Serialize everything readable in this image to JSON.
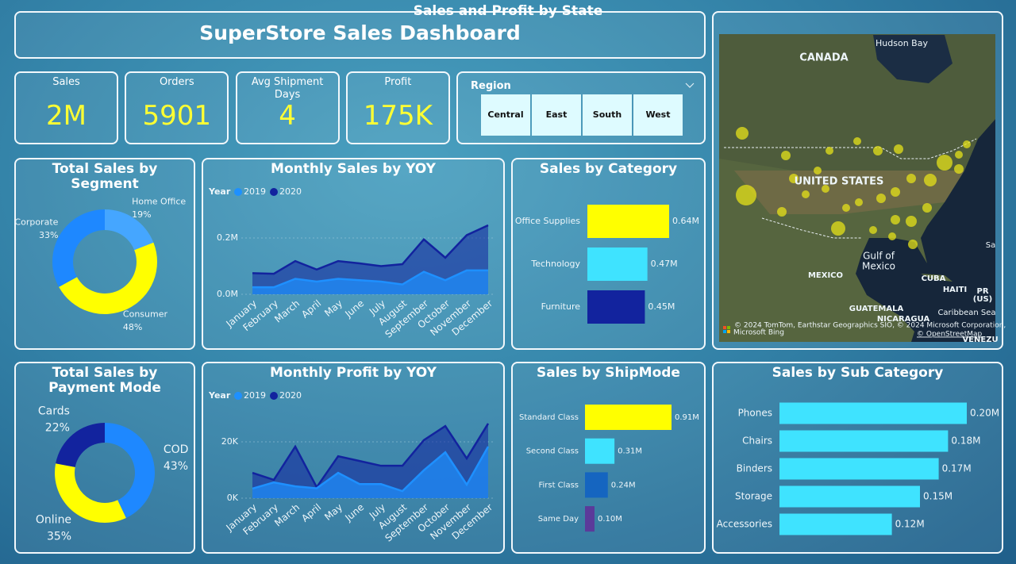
{
  "header": {
    "title": "SuperStore Sales Dashboard"
  },
  "kpis": [
    {
      "label": "Sales",
      "value": "2M"
    },
    {
      "label": "Orders",
      "value": "5901"
    },
    {
      "label": "Avg Shipment Days",
      "value": "4"
    },
    {
      "label": "Profit",
      "value": "175K"
    }
  ],
  "region_slicer": {
    "title": "Region",
    "options": [
      "Central",
      "East",
      "South",
      "West"
    ]
  },
  "map": {
    "title": "Sales and Profit by State",
    "labels": [
      "CANADA",
      "Hudson Bay",
      "UNITED STATES",
      "Gulf of",
      "Mexico",
      "MEXICO",
      "CUBA",
      "HAITI",
      "PR",
      "(US)",
      "GUATEMALA",
      "NICARAGUA",
      "Caribbean Sea",
      "VENEZU",
      "Sa"
    ],
    "attribution": "© 2024 TomTom, Earthstar Geographics SIO, © 2024 Microsoft Corporation,",
    "osm": "© OpenStreetMap",
    "provider": "Microsoft Bing"
  },
  "chart_data": [
    {
      "type": "donut",
      "title": "Total Sales by Segment",
      "categories": [
        "Home Office",
        "Consumer",
        "Corporate"
      ],
      "values": [
        19,
        48,
        33
      ],
      "value_labels": [
        "19%",
        "48%",
        "33%"
      ],
      "colors": [
        "#45a6ff",
        "#ffff00",
        "#1e88ff"
      ]
    },
    {
      "type": "area",
      "title": "Monthly Sales by YOY",
      "legend_title": "Year",
      "categories": [
        "January",
        "February",
        "March",
        "April",
        "May",
        "June",
        "July",
        "August",
        "September",
        "October",
        "November",
        "December"
      ],
      "series": [
        {
          "name": "2019",
          "color": "#1e90ff",
          "values": [
            0.025,
            0.025,
            0.055,
            0.045,
            0.055,
            0.05,
            0.045,
            0.035,
            0.08,
            0.05,
            0.085,
            0.085
          ]
        },
        {
          "name": "2020",
          "color": "#12239e",
          "values": [
            0.075,
            0.073,
            0.118,
            0.088,
            0.118,
            0.11,
            0.1,
            0.107,
            0.195,
            0.13,
            0.21,
            0.245
          ]
        }
      ],
      "ylim": [
        0,
        0.28
      ],
      "yticks": [
        {
          "value": 0,
          "label": "0.0M"
        },
        {
          "value": 0.2,
          "label": "0.2M"
        }
      ],
      "grid": true
    },
    {
      "type": "hbar",
      "title": "Sales by Category",
      "categories": [
        "Office Supplies",
        "Technology",
        "Furniture"
      ],
      "values": [
        0.64,
        0.47,
        0.45
      ],
      "value_labels": [
        "0.64M",
        "0.47M",
        "0.45M"
      ],
      "colors": [
        "#ffff00",
        "#3fe3ff",
        "#12239e"
      ]
    },
    {
      "type": "donut",
      "title": "Total Sales by Payment Mode",
      "categories": [
        "COD",
        "Online",
        "Cards"
      ],
      "values": [
        43,
        35,
        22
      ],
      "value_labels": [
        "43%",
        "35%",
        "22%"
      ],
      "colors": [
        "#1e88ff",
        "#ffff00",
        "#12239e"
      ]
    },
    {
      "type": "area",
      "title": "Monthly Profit by YOY",
      "legend_title": "Year",
      "categories": [
        "January",
        "February",
        "March",
        "April",
        "May",
        "June",
        "July",
        "August",
        "September",
        "October",
        "November",
        "December"
      ],
      "series": [
        {
          "name": "2019",
          "color": "#1e90ff",
          "values": [
            3.4,
            5.6,
            4.2,
            3.5,
            9,
            5,
            5,
            2.5,
            9.9,
            16.3,
            4.8,
            18.3
          ]
        },
        {
          "name": "2020",
          "color": "#12239e",
          "values": [
            9,
            6.5,
            18.3,
            3.9,
            14.9,
            13.2,
            11.5,
            11.5,
            20.6,
            25.6,
            14.1,
            26.5
          ]
        }
      ],
      "ylim": [
        0,
        30
      ],
      "yticks": [
        {
          "value": 0,
          "label": "0K"
        },
        {
          "value": 20,
          "label": "20K"
        }
      ],
      "grid": true
    },
    {
      "type": "hbar",
      "title": "Sales by ShipMode",
      "categories": [
        "Standard Class",
        "Second Class",
        "First Class",
        "Same Day"
      ],
      "values": [
        0.91,
        0.31,
        0.24,
        0.1
      ],
      "value_labels": [
        "0.91M",
        "0.31M",
        "0.24M",
        "0.10M"
      ],
      "colors": [
        "#ffff00",
        "#3fe3ff",
        "#1565c0",
        "#5b3a9a"
      ]
    },
    {
      "type": "hbar",
      "title": "Sales by Sub Category",
      "categories": [
        "Phones",
        "Chairs",
        "Binders",
        "Storage",
        "Accessories"
      ],
      "values": [
        0.2,
        0.18,
        0.17,
        0.15,
        0.12
      ],
      "value_labels": [
        "0.20M",
        "0.18M",
        "0.17M",
        "0.15M",
        "0.12M"
      ],
      "colors": [
        "#3fe3ff",
        "#3fe3ff",
        "#3fe3ff",
        "#3fe3ff",
        "#3fe3ff"
      ]
    }
  ]
}
